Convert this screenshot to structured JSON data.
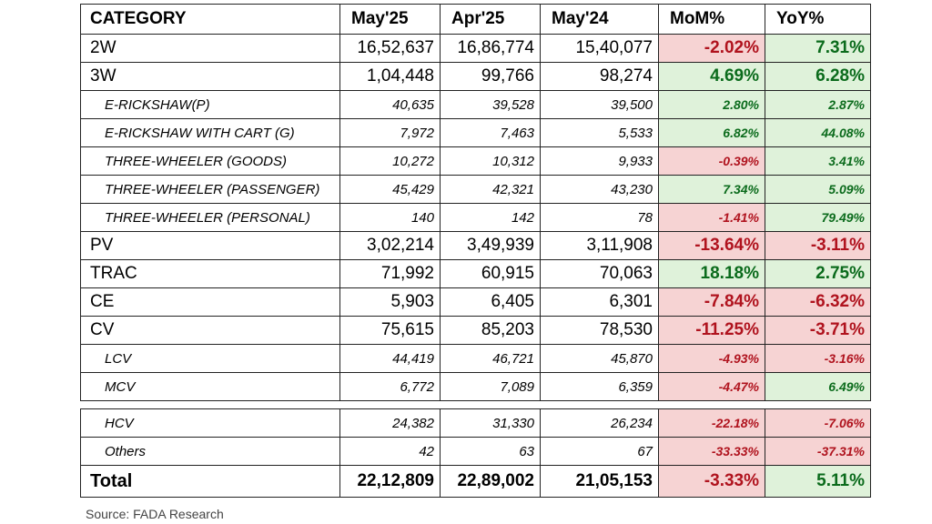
{
  "header": {
    "category": "CATEGORY",
    "may25": "May'25",
    "apr25": "Apr'25",
    "may24": "May'24",
    "mom": "MoM%",
    "yoy": "YoY%"
  },
  "rows": [
    {
      "category": "2W",
      "may25": "16,52,637",
      "apr25": "16,86,774",
      "may24": "15,40,077",
      "mom": "-2.02%",
      "yoy": "7.31%",
      "mom_status": "negative",
      "yoy_status": "positive"
    },
    {
      "category": "3W",
      "may25": "1,04,448",
      "apr25": "99,766",
      "may24": "98,274",
      "mom": "4.69%",
      "yoy": "6.28%",
      "mom_status": "positive",
      "yoy_status": "positive"
    },
    {
      "category": "E-RICKSHAW(P)",
      "may25": "40,635",
      "apr25": "39,528",
      "may24": "39,500",
      "mom": "2.80%",
      "yoy": "2.87%",
      "mom_status": "positive",
      "yoy_status": "positive"
    },
    {
      "category": "E-RICKSHAW WITH CART (G)",
      "may25": "7,972",
      "apr25": "7,463",
      "may24": "5,533",
      "mom": "6.82%",
      "yoy": "44.08%",
      "mom_status": "positive",
      "yoy_status": "positive"
    },
    {
      "category": "THREE-WHEELER (GOODS)",
      "may25": "10,272",
      "apr25": "10,312",
      "may24": "9,933",
      "mom": "-0.39%",
      "yoy": "3.41%",
      "mom_status": "negative",
      "yoy_status": "positive"
    },
    {
      "category": "THREE-WHEELER (PASSENGER)",
      "may25": "45,429",
      "apr25": "42,321",
      "may24": "43,230",
      "mom": "7.34%",
      "yoy": "5.09%",
      "mom_status": "positive",
      "yoy_status": "positive"
    },
    {
      "category": "THREE-WHEELER (PERSONAL)",
      "may25": "140",
      "apr25": "142",
      "may24": "78",
      "mom": "-1.41%",
      "yoy": "79.49%",
      "mom_status": "negative",
      "yoy_status": "positive"
    },
    {
      "category": "PV",
      "may25": "3,02,214",
      "apr25": "3,49,939",
      "may24": "3,11,908",
      "mom": "-13.64%",
      "yoy": "-3.11%",
      "mom_status": "negative",
      "yoy_status": "negative"
    },
    {
      "category": "TRAC",
      "may25": "71,992",
      "apr25": "60,915",
      "may24": "70,063",
      "mom": "18.18%",
      "yoy": "2.75%",
      "mom_status": "positive",
      "yoy_status": "positive"
    },
    {
      "category": "CE",
      "may25": "5,903",
      "apr25": "6,405",
      "may24": "6,301",
      "mom": "-7.84%",
      "yoy": "-6.32%",
      "mom_status": "negative",
      "yoy_status": "negative"
    },
    {
      "category": "CV",
      "may25": "75,615",
      "apr25": "85,203",
      "may24": "78,530",
      "mom": "-11.25%",
      "yoy": "-3.71%",
      "mom_status": "negative",
      "yoy_status": "negative"
    },
    {
      "category": "LCV",
      "may25": "44,419",
      "apr25": "46,721",
      "may24": "45,870",
      "mom": "-4.93%",
      "yoy": "-3.16%",
      "mom_status": "negative",
      "yoy_status": "negative"
    },
    {
      "category": "MCV",
      "may25": "6,772",
      "apr25": "7,089",
      "may24": "6,359",
      "mom": "-4.47%",
      "yoy": "6.49%",
      "mom_status": "negative",
      "yoy_status": "positive"
    },
    {
      "category": "HCV",
      "may25": "24,382",
      "apr25": "31,330",
      "may24": "26,234",
      "mom": "-22.18%",
      "yoy": "-7.06%",
      "mom_status": "negative",
      "yoy_status": "negative"
    },
    {
      "category": "Others",
      "may25": "42",
      "apr25": "63",
      "may24": "67",
      "mom": "-33.33%",
      "yoy": "-37.31%",
      "mom_status": "negative",
      "yoy_status": "negative"
    }
  ],
  "total": {
    "category": "Total",
    "may25": "22,12,809",
    "apr25": "22,89,002",
    "may24": "21,05,153",
    "mom": "-3.33%",
    "yoy": "5.11%",
    "mom_status": "negative",
    "yoy_status": "positive"
  },
  "source": "Source: FADA Research",
  "colors": {
    "positive_bg": "#dff2da",
    "positive_text": "#0b6b1c",
    "negative_bg": "#f6d3d3",
    "negative_text": "#b0131e"
  }
}
